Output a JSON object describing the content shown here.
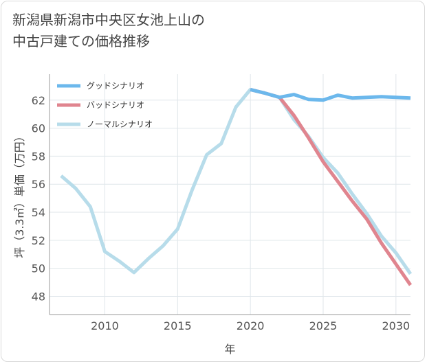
{
  "title_lines": [
    "新潟県新潟市中央区女池上山の",
    "中古戸建ての価格推移"
  ],
  "chart_data": {
    "type": "line",
    "xlabel": "年",
    "ylabel": "坪（3.3㎡）単価（万円）",
    "xlim": [
      2006.2,
      2031
    ],
    "ylim": [
      46.7,
      63.85
    ],
    "xticks": [
      2010,
      2015,
      2020,
      2025,
      2030
    ],
    "yticks": [
      48,
      50,
      52,
      54,
      56,
      58,
      60,
      62
    ],
    "grid": true,
    "legend_position": "top-left",
    "series": [
      {
        "name": "グッドシナリオ",
        "color": "#6cb8ec",
        "x": [
          2020,
          2021,
          2022,
          2023,
          2024,
          2025,
          2026,
          2027,
          2028,
          2029,
          2030,
          2031
        ],
        "values": [
          62.75,
          62.5,
          62.2,
          62.4,
          62.05,
          62.0,
          62.35,
          62.15,
          62.2,
          62.25,
          62.2,
          62.15
        ]
      },
      {
        "name": "バッドシナリオ",
        "color": "#e0858f",
        "x": [
          2020,
          2021,
          2022,
          2023,
          2024,
          2025,
          2026,
          2027,
          2028,
          2029,
          2030,
          2031
        ],
        "values": [
          62.75,
          62.5,
          62.2,
          60.9,
          59.3,
          57.6,
          56.2,
          54.8,
          53.5,
          51.8,
          50.3,
          48.8
        ]
      },
      {
        "name": "ノーマルシナリオ",
        "color": "#b7dcea",
        "x": [
          2007,
          2008,
          2009,
          2010,
          2011,
          2012,
          2013,
          2014,
          2015,
          2016,
          2017,
          2018,
          2019,
          2020,
          2021,
          2022,
          2023,
          2024,
          2025,
          2026,
          2027,
          2028,
          2029,
          2030,
          2031
        ],
        "values": [
          56.6,
          55.7,
          54.4,
          51.2,
          50.5,
          49.7,
          50.7,
          51.6,
          52.8,
          55.6,
          58.1,
          58.9,
          61.5,
          62.75,
          62.5,
          62.2,
          60.6,
          59.4,
          57.9,
          56.8,
          55.3,
          53.9,
          52.3,
          51.1,
          49.6
        ]
      }
    ]
  }
}
